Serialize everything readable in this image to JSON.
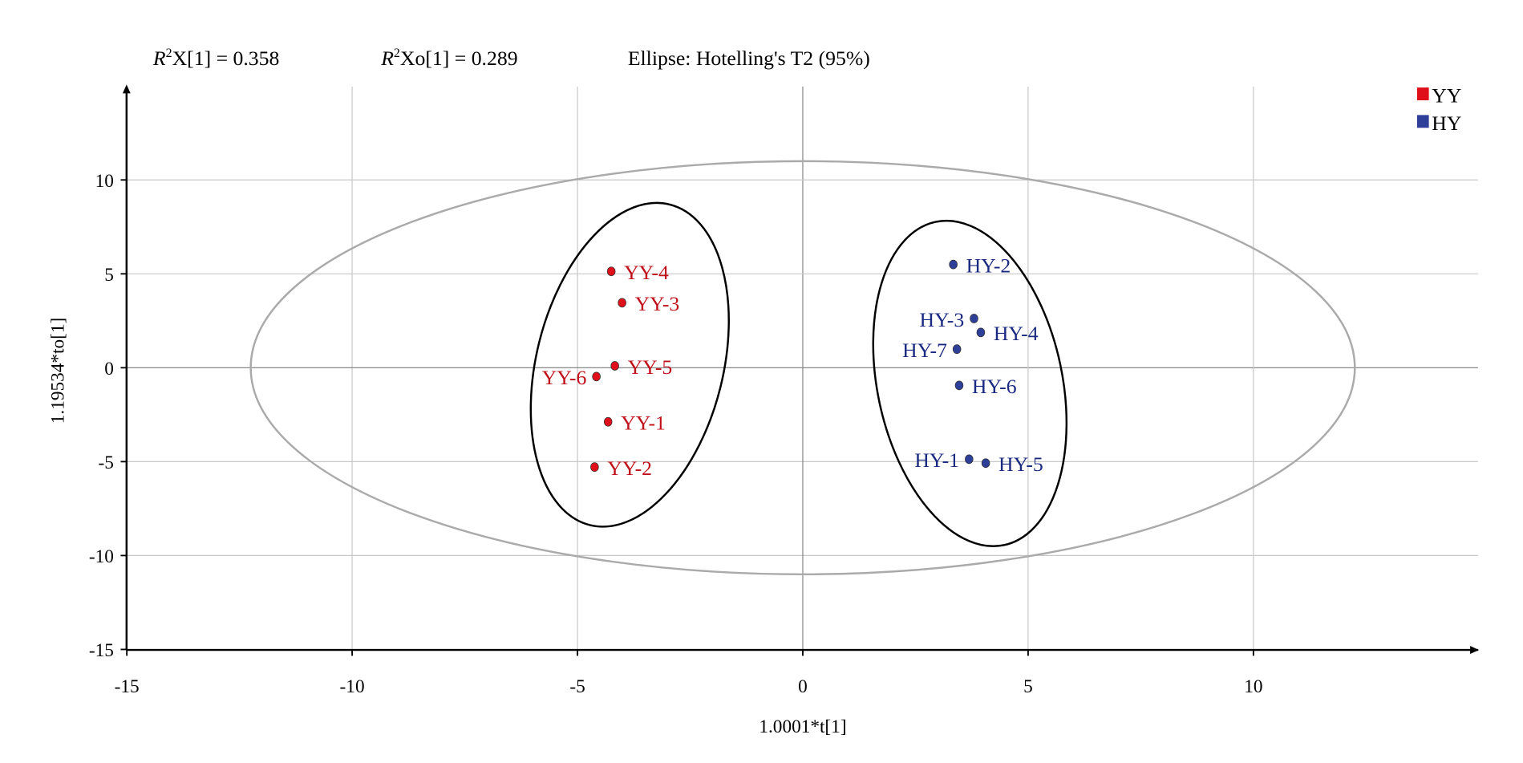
{
  "header": {
    "r2x": {
      "prefix": "R",
      "sup": "2",
      "rest": "X[1] = 0.358"
    },
    "r2xo": {
      "prefix": "R",
      "sup": "2",
      "rest": "Xo[1] = 0.289"
    },
    "ellipse_note": "Ellipse: Hotelling's T2 (95%)"
  },
  "chart_data": {
    "type": "scatter",
    "xlabel": "1.0001*t[1]",
    "ylabel": "1.19534*to[1]",
    "xlim": [
      -15,
      15
    ],
    "ylim": [
      -15,
      15
    ],
    "xticks": [
      "-15",
      "-10",
      "-5",
      "0",
      "5",
      "10"
    ],
    "yticks": [
      "10",
      "5",
      "0",
      "-5",
      "-10",
      "-15"
    ],
    "grid": true,
    "legend_position": "top-right",
    "hotelling_ellipse": {
      "center": [
        0,
        0
      ],
      "semi_axes": [
        12.25,
        11.0
      ]
    },
    "series": [
      {
        "name": "YY",
        "color": "#e0101a",
        "label_color": "#c0101a",
        "points": [
          {
            "label": "YY-4",
            "x": -4.25,
            "y": 5.13,
            "label_side": "right"
          },
          {
            "label": "YY-3",
            "x": -4.01,
            "y": 3.46,
            "label_side": "right"
          },
          {
            "label": "YY-5",
            "x": -4.17,
            "y": 0.1,
            "label_side": "right"
          },
          {
            "label": "YY-6",
            "x": -4.58,
            "y": -0.47,
            "label_side": "left"
          },
          {
            "label": "YY-1",
            "x": -4.32,
            "y": -2.88,
            "label_side": "right"
          },
          {
            "label": "YY-2",
            "x": -4.62,
            "y": -5.29,
            "label_side": "right"
          }
        ]
      },
      {
        "name": "HY",
        "color": "#2e3f9a",
        "label_color": "#1a2a80",
        "points": [
          {
            "label": "HY-2",
            "x": 3.34,
            "y": 5.5,
            "label_side": "right"
          },
          {
            "label": "HY-3",
            "x": 3.8,
            "y": 2.62,
            "label_side": "left"
          },
          {
            "label": "HY-4",
            "x": 3.95,
            "y": 1.88,
            "label_side": "right"
          },
          {
            "label": "HY-7",
            "x": 3.42,
            "y": 0.99,
            "label_side": "left"
          },
          {
            "label": "HY-6",
            "x": 3.47,
            "y": -0.94,
            "label_side": "right"
          },
          {
            "label": "HY-1",
            "x": 3.69,
            "y": -4.87,
            "label_side": "left"
          },
          {
            "label": "HY-5",
            "x": 4.06,
            "y": -5.08,
            "label_side": "right"
          }
        ]
      }
    ]
  }
}
